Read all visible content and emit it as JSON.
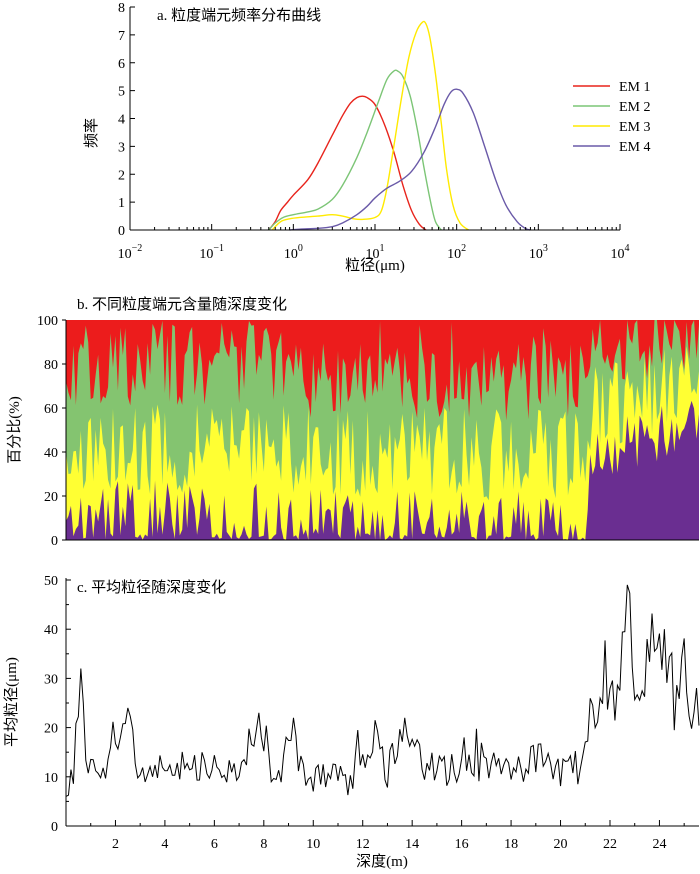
{
  "chart_data": [
    {
      "type": "line",
      "title": "a. 粒度端元频率分布曲线",
      "xlabel": "粒径(μm)",
      "ylabel": "频率",
      "xscale": "log",
      "xlim": [
        0.01,
        10000
      ],
      "ylim": [
        0,
        8
      ],
      "x_ticks": [
        {
          "b": "10",
          "e": "−2"
        },
        {
          "b": "10",
          "e": "−1"
        },
        {
          "b": "10",
          "e": "0"
        },
        {
          "b": "10",
          "e": "1"
        },
        {
          "b": "10",
          "e": "2"
        },
        {
          "b": "10",
          "e": "3"
        },
        {
          "b": "10",
          "e": "4"
        }
      ],
      "y_ticks": [
        "0",
        "1",
        "2",
        "3",
        "4",
        "5",
        "6",
        "7",
        "8"
      ],
      "legend_position": "right",
      "series": [
        {
          "name": "EM 1",
          "color": "#e8241c",
          "points": [
            [
              0.5,
              0
            ],
            [
              0.6,
              0.3
            ],
            [
              0.7,
              0.7
            ],
            [
              0.85,
              1.0
            ],
            [
              1.0,
              1.25
            ],
            [
              1.5,
              1.8
            ],
            [
              2.0,
              2.4
            ],
            [
              3.0,
              3.4
            ],
            [
              4.0,
              4.1
            ],
            [
              5.0,
              4.55
            ],
            [
              6.0,
              4.75
            ],
            [
              7.0,
              4.8
            ],
            [
              8.0,
              4.75
            ],
            [
              10.0,
              4.5
            ],
            [
              13.0,
              3.8
            ],
            [
              17.0,
              2.8
            ],
            [
              22.0,
              1.6
            ],
            [
              28.0,
              0.7
            ],
            [
              35.0,
              0.2
            ],
            [
              42.0,
              0
            ]
          ]
        },
        {
          "name": "EM 2",
          "color": "#7cc576",
          "points": [
            [
              0.5,
              0
            ],
            [
              0.6,
              0.25
            ],
            [
              0.75,
              0.45
            ],
            [
              1.0,
              0.55
            ],
            [
              1.5,
              0.65
            ],
            [
              2.0,
              0.75
            ],
            [
              3.0,
              1.1
            ],
            [
              4.0,
              1.6
            ],
            [
              6.0,
              2.6
            ],
            [
              8.0,
              3.5
            ],
            [
              11.0,
              4.6
            ],
            [
              14.0,
              5.4
            ],
            [
              17.0,
              5.7
            ],
            [
              19.0,
              5.7
            ],
            [
              22.0,
              5.5
            ],
            [
              27.0,
              4.8
            ],
            [
              33.0,
              3.6
            ],
            [
              40.0,
              2.2
            ],
            [
              48.0,
              1.0
            ],
            [
              55.0,
              0.3
            ],
            [
              65.0,
              0
            ]
          ]
        },
        {
          "name": "EM 3",
          "color": "#ffea00",
          "points": [
            [
              0.55,
              0
            ],
            [
              0.7,
              0.3
            ],
            [
              0.9,
              0.4
            ],
            [
              1.2,
              0.45
            ],
            [
              2.0,
              0.5
            ],
            [
              3.0,
              0.55
            ],
            [
              4.0,
              0.5
            ],
            [
              5.5,
              0.4
            ],
            [
              7.0,
              0.38
            ],
            [
              10.0,
              0.45
            ],
            [
              12.0,
              0.7
            ],
            [
              14.0,
              1.5
            ],
            [
              17.0,
              3.0
            ],
            [
              21.0,
              4.7
            ],
            [
              26.0,
              6.2
            ],
            [
              32.0,
              7.1
            ],
            [
              38.0,
              7.45
            ],
            [
              42.0,
              7.4
            ],
            [
              47.0,
              6.9
            ],
            [
              55.0,
              5.6
            ],
            [
              65.0,
              3.8
            ],
            [
              75.0,
              2.2
            ],
            [
              90.0,
              0.9
            ],
            [
              110.0,
              0.25
            ],
            [
              140.0,
              0
            ]
          ]
        },
        {
          "name": "EM 4",
          "color": "#6a5aa8",
          "points": [
            [
              0.9,
              0
            ],
            [
              1.2,
              0.03
            ],
            [
              2.0,
              0.06
            ],
            [
              3.0,
              0.12
            ],
            [
              4.0,
              0.25
            ],
            [
              6.0,
              0.55
            ],
            [
              8.0,
              0.85
            ],
            [
              10.0,
              1.15
            ],
            [
              14.0,
              1.5
            ],
            [
              20.0,
              1.75
            ],
            [
              28.0,
              2.1
            ],
            [
              40.0,
              2.8
            ],
            [
              55.0,
              3.7
            ],
            [
              70.0,
              4.5
            ],
            [
              85.0,
              4.95
            ],
            [
              100.0,
              5.05
            ],
            [
              120.0,
              4.9
            ],
            [
              160.0,
              4.2
            ],
            [
              220.0,
              3.0
            ],
            [
              300.0,
              1.8
            ],
            [
              400.0,
              0.9
            ],
            [
              550.0,
              0.3
            ],
            [
              700.0,
              0.05
            ],
            [
              800.0,
              0
            ]
          ]
        }
      ]
    },
    {
      "type": "area",
      "stacked": true,
      "title": "b. 不同粒度端元含量随深度变化",
      "xlabel": "",
      "ylabel": "百分比(%)",
      "xlim": [
        0,
        25.6
      ],
      "ylim": [
        0,
        100
      ],
      "y_ticks": [
        "0",
        "20",
        "40",
        "60",
        "80",
        "100"
      ],
      "grid": false,
      "depth_range": [
        0,
        25.6
      ],
      "samples": 256,
      "layers": [
        {
          "name": "EM 4",
          "color": "#6a2e91"
        },
        {
          "name": "EM 3",
          "color": "#ffff33"
        },
        {
          "name": "EM 2",
          "color": "#84c470"
        },
        {
          "name": "EM 1",
          "color": "#ec1c1c"
        }
      ],
      "profile": {
        "em4_mean": [
          [
            0,
            14
          ],
          [
            21,
            7
          ],
          [
            21.2,
            38
          ],
          [
            25.6,
            52
          ]
        ],
        "em3_top_mean": [
          [
            0,
            42
          ],
          [
            21,
            38
          ],
          [
            21.2,
            58
          ],
          [
            25.6,
            72
          ]
        ],
        "em2_top_mean": [
          [
            0,
            80
          ],
          [
            9,
            80
          ],
          [
            10,
            70
          ],
          [
            13,
            78
          ],
          [
            15,
            68
          ],
          [
            19,
            74
          ],
          [
            21,
            74
          ],
          [
            21.2,
            86
          ],
          [
            25.6,
            96
          ]
        ]
      }
    },
    {
      "type": "line",
      "title": "c. 平均粒径随深度变化",
      "xlabel": "深度(m)",
      "ylabel": "平均粒径(μm)",
      "xlim": [
        0,
        25.6
      ],
      "ylim": [
        0,
        50
      ],
      "x_ticks": [
        "2",
        "4",
        "6",
        "8",
        "10",
        "12",
        "14",
        "16",
        "18",
        "20",
        "22",
        "24"
      ],
      "y_ticks": [
        "0",
        "10",
        "20",
        "30",
        "40",
        "50"
      ],
      "samples": 256,
      "depth_range": [
        0,
        25.6
      ],
      "series": [
        {
          "name": "",
          "color": "#000000",
          "anchors": [
            [
              0,
              7
            ],
            [
              0.3,
              12
            ],
            [
              0.6,
              32
            ],
            [
              0.8,
              12
            ],
            [
              1.5,
              11
            ],
            [
              2.5,
              22
            ],
            [
              3,
              11
            ],
            [
              5,
              13
            ],
            [
              7,
              11
            ],
            [
              7.8,
              22
            ],
            [
              8.5,
              8
            ],
            [
              9.2,
              22
            ],
            [
              9.5,
              10
            ],
            [
              10.5,
              11
            ],
            [
              11.5,
              9
            ],
            [
              12.5,
              18
            ],
            [
              13,
              11
            ],
            [
              13.7,
              22
            ],
            [
              14.5,
              12
            ],
            [
              16,
              11
            ],
            [
              17,
              13
            ],
            [
              18,
              10
            ],
            [
              19,
              14
            ],
            [
              20,
              11
            ],
            [
              20.8,
              12
            ],
            [
              21.3,
              22
            ],
            [
              21.8,
              30
            ],
            [
              22.2,
              24
            ],
            [
              22.7,
              49
            ],
            [
              23,
              26
            ],
            [
              23.6,
              36
            ],
            [
              24.2,
              38
            ],
            [
              24.6,
              26
            ],
            [
              25,
              33
            ],
            [
              25.3,
              25
            ],
            [
              25.6,
              27
            ]
          ],
          "peaks": [
            [
              0.6,
              32
            ],
            [
              22.7,
              49
            ],
            [
              24.2,
              40
            ],
            [
              23.5,
              38
            ],
            [
              7.8,
              23
            ],
            [
              13.7,
              22
            ],
            [
              2.5,
              24
            ],
            [
              9.2,
              22
            ]
          ]
        }
      ]
    }
  ]
}
